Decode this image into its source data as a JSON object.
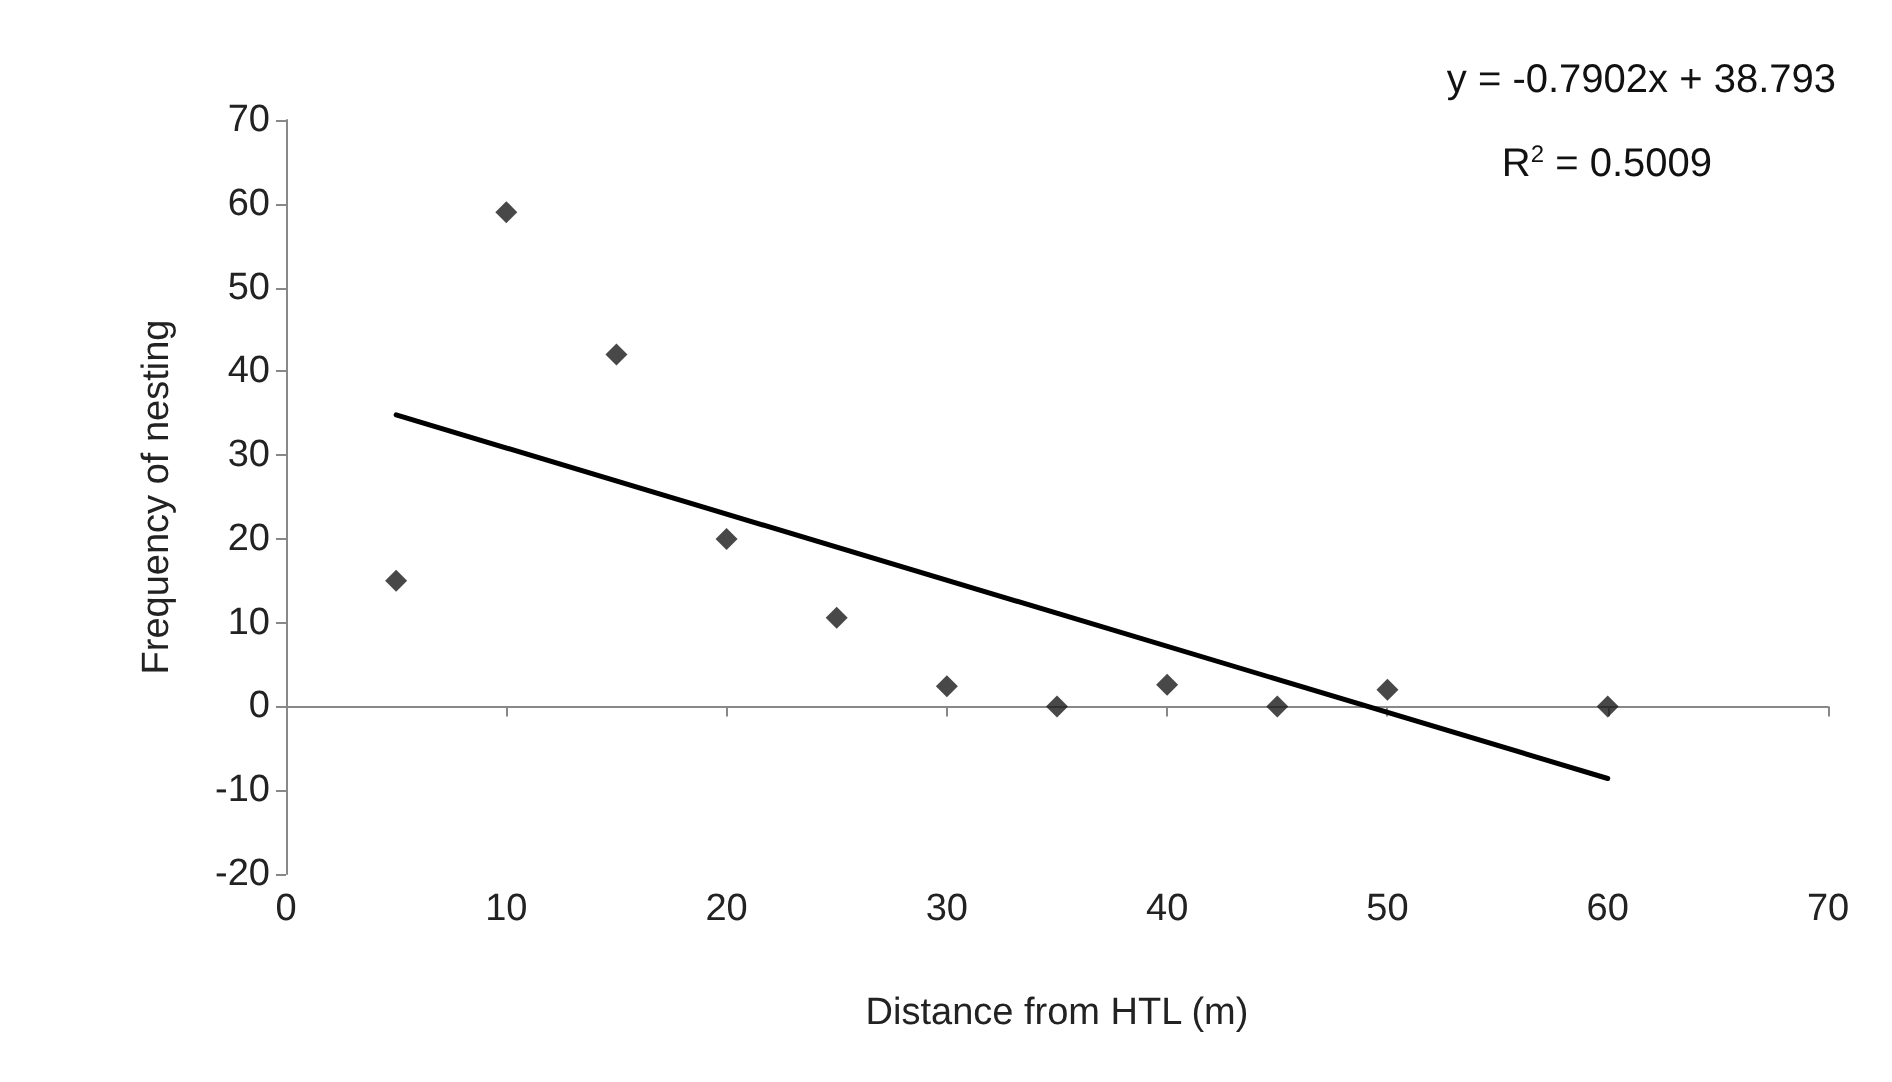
{
  "chart_data": {
    "type": "scatter",
    "xlabel": "Distance from HTL (m)",
    "ylabel": "Frequency of nesting",
    "marker": "diamond",
    "xlim": [
      0,
      70
    ],
    "xticks": [
      0,
      10,
      20,
      30,
      40,
      50,
      60,
      70
    ],
    "ylim": [
      -20,
      70
    ],
    "yticks": [
      -20,
      -10,
      0,
      10,
      20,
      30,
      40,
      50,
      60,
      70
    ],
    "series": [
      {
        "color": "#1a1a1a",
        "x": [
          5,
          10,
          15,
          20,
          25,
          30,
          35,
          40,
          45,
          50,
          60
        ],
        "values": [
          15,
          59,
          42,
          20,
          10.6,
          2.4,
          0,
          2.6,
          0,
          2,
          0
        ]
      },
      {
        "type": "line",
        "color": "#000000",
        "line_style": "solid",
        "marker": "none",
        "x": [
          5,
          60
        ],
        "values": [
          34.8,
          -8.6
        ]
      }
    ],
    "annotations": [
      "y = -0.7902x + 38.793",
      "R$^{2}$ = 0.5009"
    ]
  }
}
